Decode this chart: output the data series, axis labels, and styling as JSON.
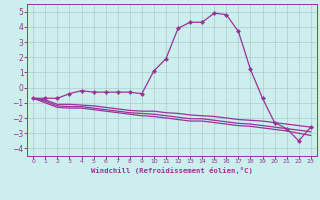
{
  "xlabel": "Windchill (Refroidissement éolien,°C)",
  "background_color": "#cceeed",
  "grid_color": "#aacccc",
  "line_color": "#993399",
  "xlim": [
    -0.5,
    23.5
  ],
  "ylim": [
    -4.5,
    5.5
  ],
  "yticks": [
    -4,
    -3,
    -2,
    -1,
    0,
    1,
    2,
    3,
    4,
    5
  ],
  "xticks": [
    0,
    1,
    2,
    3,
    4,
    5,
    6,
    7,
    8,
    9,
    10,
    11,
    12,
    13,
    14,
    15,
    16,
    17,
    18,
    19,
    20,
    21,
    22,
    23
  ],
  "series": [
    {
      "x": [
        0,
        1,
        2,
        3,
        4,
        5,
        6,
        7,
        8,
        9,
        10,
        11,
        12,
        13,
        14,
        15,
        16,
        17,
        18,
        19,
        20,
        21,
        22,
        23
      ],
      "y": [
        -0.7,
        -0.7,
        -0.7,
        -0.4,
        -0.2,
        -0.3,
        -0.3,
        -0.3,
        -0.3,
        -0.4,
        1.1,
        1.9,
        3.9,
        4.3,
        4.3,
        4.9,
        4.8,
        3.7,
        1.2,
        -0.7,
        -2.3,
        -2.7,
        -3.5,
        -2.6
      ],
      "marker": true
    },
    {
      "x": [
        0,
        1,
        2,
        3,
        4,
        5,
        6,
        7,
        8,
        9,
        10,
        11,
        12,
        13,
        14,
        15,
        16,
        17,
        18,
        19,
        20,
        21,
        22,
        23
      ],
      "y": [
        -0.7,
        -0.8,
        -1.1,
        -1.1,
        -1.15,
        -1.2,
        -1.3,
        -1.4,
        -1.5,
        -1.55,
        -1.55,
        -1.65,
        -1.7,
        -1.8,
        -1.85,
        -1.9,
        -2.0,
        -2.1,
        -2.15,
        -2.2,
        -2.3,
        -2.4,
        -2.5,
        -2.6
      ],
      "marker": false
    },
    {
      "x": [
        0,
        1,
        2,
        3,
        4,
        5,
        6,
        7,
        8,
        9,
        10,
        11,
        12,
        13,
        14,
        15,
        16,
        17,
        18,
        19,
        20,
        21,
        22,
        23
      ],
      "y": [
        -0.7,
        -0.9,
        -1.2,
        -1.25,
        -1.25,
        -1.35,
        -1.45,
        -1.55,
        -1.65,
        -1.7,
        -1.75,
        -1.85,
        -1.95,
        -2.05,
        -2.05,
        -2.15,
        -2.25,
        -2.35,
        -2.4,
        -2.5,
        -2.6,
        -2.7,
        -2.8,
        -2.9
      ],
      "marker": false
    },
    {
      "x": [
        0,
        1,
        2,
        3,
        4,
        5,
        6,
        7,
        8,
        9,
        10,
        11,
        12,
        13,
        14,
        15,
        16,
        17,
        18,
        19,
        20,
        21,
        22,
        23
      ],
      "y": [
        -0.7,
        -1.0,
        -1.3,
        -1.35,
        -1.35,
        -1.45,
        -1.55,
        -1.65,
        -1.75,
        -1.85,
        -1.9,
        -2.0,
        -2.1,
        -2.2,
        -2.2,
        -2.3,
        -2.4,
        -2.5,
        -2.55,
        -2.65,
        -2.75,
        -2.85,
        -3.0,
        -3.15
      ],
      "marker": false
    }
  ]
}
